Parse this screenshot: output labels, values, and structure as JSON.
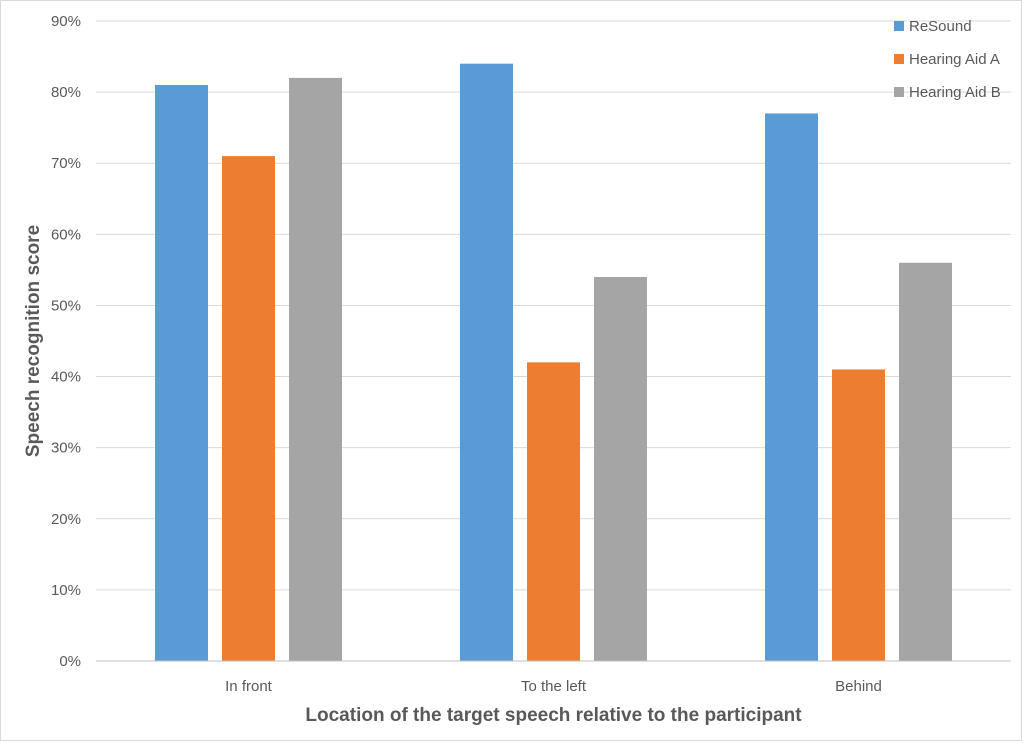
{
  "chart_data": {
    "type": "bar",
    "categories": [
      "In front",
      "To the left",
      "Behind"
    ],
    "series": [
      {
        "name": "ReSound",
        "color": "#5B9BD5",
        "values": [
          81,
          84,
          77
        ]
      },
      {
        "name": "Hearing Aid A",
        "color": "#ED7D31",
        "values": [
          71,
          42,
          41
        ]
      },
      {
        "name": "Hearing Aid B",
        "color": "#A5A5A5",
        "values": [
          82,
          54,
          56
        ]
      }
    ],
    "xlabel": "Location of the target speech relative to the participant",
    "ylabel": "Speech recognition score",
    "ylim": [
      0,
      90
    ],
    "yticks": [
      "0%",
      "10%",
      "20%",
      "30%",
      "40%",
      "50%",
      "60%",
      "70%",
      "80%",
      "90%"
    ],
    "grid": true,
    "legend_position": "top-right"
  }
}
